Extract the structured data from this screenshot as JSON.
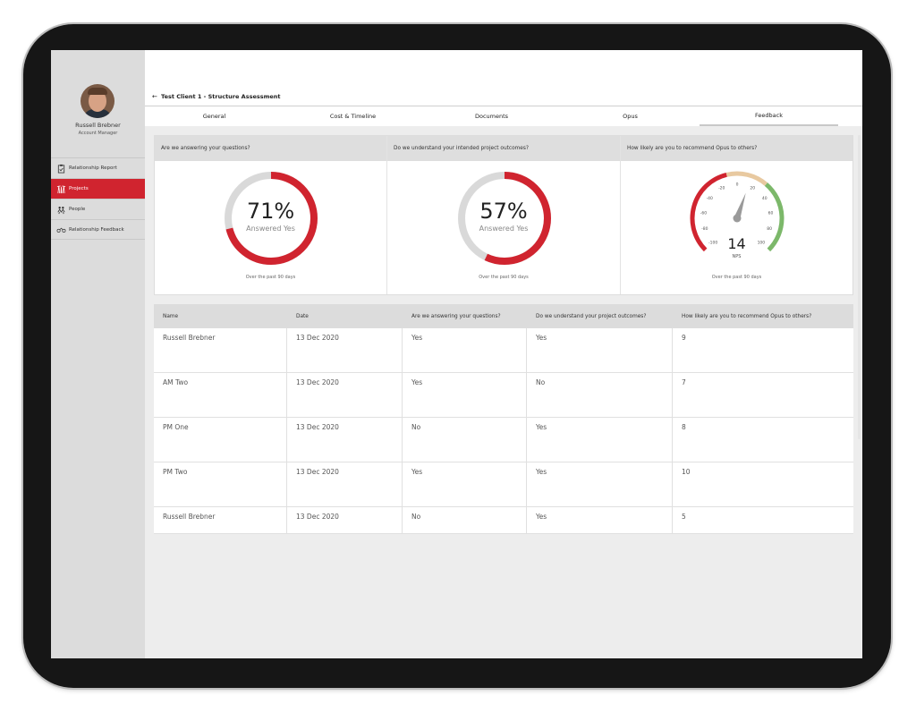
{
  "user": {
    "name": "Russell Brebner",
    "role": "Account Manager"
  },
  "nav": {
    "items": [
      {
        "label": "Relationship Report",
        "icon": "clipboard-icon"
      },
      {
        "label": "Projects",
        "icon": "cranes-icon",
        "active": true
      },
      {
        "label": "People",
        "icon": "people-icon"
      },
      {
        "label": "Relationship Feedback",
        "icon": "handshake-icon"
      }
    ]
  },
  "header": {
    "back": "←",
    "title": "Test Client 1 - Structure Assessment"
  },
  "tabs": [
    {
      "label": "General"
    },
    {
      "label": "Cost & Timeline"
    },
    {
      "label": "Documents"
    },
    {
      "label": "Opus"
    },
    {
      "label": "Feedback",
      "active": true
    }
  ],
  "cards": [
    {
      "title": "Are we answering your questions?",
      "percent": 71,
      "value_text": "71%",
      "sub": "Answered Yes",
      "footer": "Over the past 90 days"
    },
    {
      "title": "Do we understand your intended project outcomes?",
      "percent": 57,
      "value_text": "57%",
      "sub": "Answered Yes",
      "footer": "Over the past 90 days"
    },
    {
      "title": "How likely are you to recommend Opus to others?",
      "nps": 14,
      "value_text": "14",
      "sub": "NPS",
      "footer": "Over the past 90 days",
      "ticks": [
        "-100",
        "-80",
        "-60",
        "-40",
        "-20",
        "0",
        "20",
        "40",
        "60",
        "80",
        "100"
      ]
    }
  ],
  "table": {
    "headers": [
      "Name",
      "Date",
      "Are we answering your questions?",
      "Do we understand your project outcomes?",
      "How likely are you to recommend Opus to others?"
    ],
    "rows": [
      [
        "Russell Brebner",
        "13 Dec 2020",
        "Yes",
        "Yes",
        "9"
      ],
      [
        "AM Two",
        "13 Dec 2020",
        "Yes",
        "No",
        "7"
      ],
      [
        "PM One",
        "13 Dec 2020",
        "No",
        "Yes",
        "8"
      ],
      [
        "PM Two",
        "13 Dec 2020",
        "Yes",
        "Yes",
        "10"
      ],
      [
        "Russell Brebner",
        "13 Dec 2020",
        "No",
        "Yes",
        "5"
      ]
    ]
  },
  "colors": {
    "accent": "#d0242f",
    "track": "#d9d9d9",
    "gauge_mid": "#e8c9a0",
    "gauge_good": "#7cb86a"
  }
}
